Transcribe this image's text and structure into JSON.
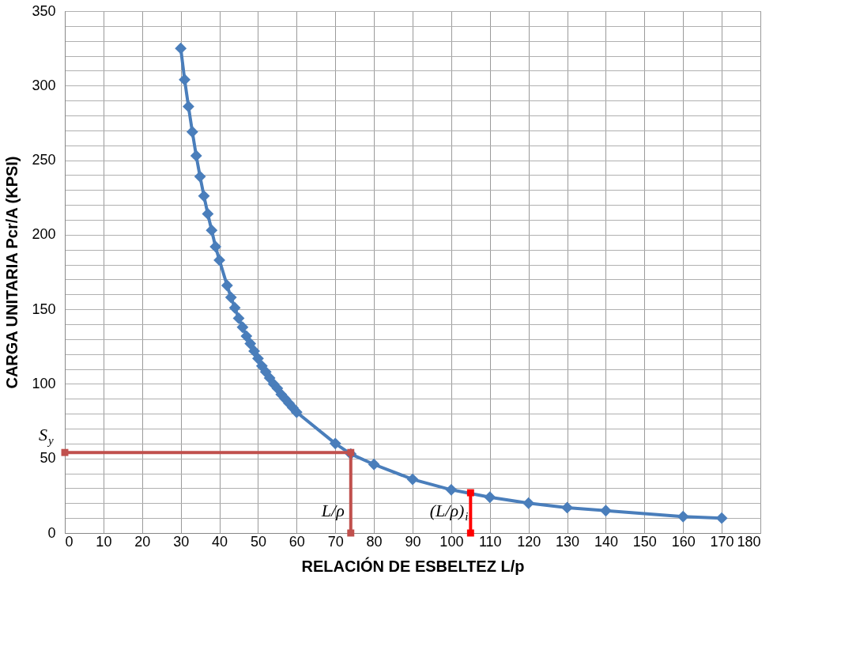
{
  "chart_data": {
    "type": "line",
    "xlabel": "RELACIÓN DE ESBELTEZ L/p",
    "ylabel": "CARGA UNITARIA Pcr/A (KPSI)",
    "xlim": [
      0,
      180
    ],
    "xticks": [
      0,
      10,
      20,
      30,
      40,
      50,
      60,
      70,
      80,
      90,
      100,
      110,
      120,
      130,
      140,
      150,
      160,
      170,
      180
    ],
    "ylim": [
      0,
      350
    ],
    "yticks": [
      0,
      {
        "value": 10,
        "label": null
      },
      {
        "value": 20,
        "label": null
      },
      {
        "value": 30,
        "label": null
      },
      {
        "value": 40,
        "label": null
      },
      50,
      {
        "value": 60,
        "label": null
      },
      {
        "value": 70,
        "label": null
      },
      {
        "value": 80,
        "label": null
      },
      {
        "value": 90,
        "label": null
      },
      100,
      {
        "value": 110,
        "label": null
      },
      {
        "value": 120,
        "label": null
      },
      {
        "value": 130,
        "label": null
      },
      {
        "value": 140,
        "label": null
      },
      150,
      {
        "value": 160,
        "label": null
      },
      {
        "value": 170,
        "label": null
      },
      {
        "value": 180,
        "label": null
      },
      {
        "value": 190,
        "label": null
      },
      200,
      {
        "value": 210,
        "label": null
      },
      {
        "value": 220,
        "label": null
      },
      {
        "value": 230,
        "label": null
      },
      {
        "value": 240,
        "label": null
      },
      250,
      {
        "value": 260,
        "label": null
      },
      {
        "value": 270,
        "label": null
      },
      {
        "value": 280,
        "label": null
      },
      {
        "value": 290,
        "label": null
      },
      300,
      {
        "value": 310,
        "label": null
      },
      {
        "value": 320,
        "label": null
      },
      {
        "value": 330,
        "label": null
      },
      {
        "value": 340,
        "label": null
      },
      350
    ],
    "grid": true,
    "line_style": "solid",
    "series": [
      {
        "color": "#4a7ebb",
        "marker": "diamond",
        "x": [
          30,
          31,
          32,
          33,
          34,
          35,
          36,
          37,
          38,
          39,
          40,
          42,
          43,
          44,
          45,
          46,
          47,
          48,
          49,
          50,
          51,
          52,
          53,
          54,
          55,
          56,
          57,
          58,
          59,
          60,
          70,
          74,
          80,
          90,
          100,
          110,
          120,
          130,
          140,
          160,
          170
        ],
        "values": [
          325,
          304,
          286,
          269,
          253,
          239,
          226,
          214,
          203,
          192,
          183,
          166,
          158,
          151,
          144,
          138,
          132,
          127,
          122,
          117,
          112,
          108,
          104,
          100,
          97,
          93,
          90,
          87,
          84,
          81,
          60,
          53,
          46,
          36,
          29,
          24,
          20,
          17,
          15,
          11,
          10
        ]
      },
      {
        "color": "#c0504d",
        "marker": "square",
        "x": [
          0,
          74,
          74
        ],
        "values": [
          54,
          54,
          0
        ]
      },
      {
        "color": "#ff0000",
        "marker": "square",
        "x": [
          105,
          105
        ],
        "values": [
          27,
          0
        ]
      }
    ],
    "annotations": [
      {
        "text": "S$_{y}$",
        "x": 0,
        "y": 54
      },
      {
        "text": "L/ρ",
        "x": 74,
        "y": 0
      },
      {
        "text": "(L/ρ)$_{i}$",
        "x": 105,
        "y": 0
      }
    ]
  }
}
